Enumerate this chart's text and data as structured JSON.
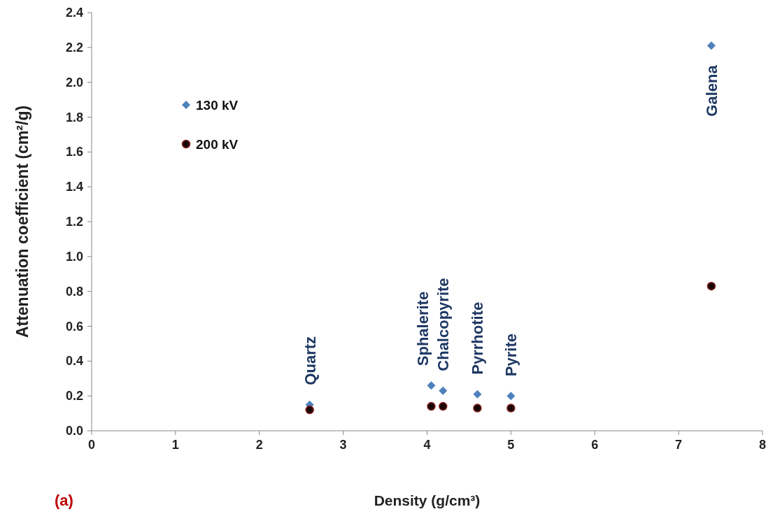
{
  "chart_data": {
    "type": "scatter",
    "xlabel": "Density (g/cm³)",
    "ylabel": "Attenuation coefficient  (cm²/g)",
    "xlim": [
      0,
      8
    ],
    "xticks": [
      0,
      1,
      2,
      3,
      4,
      5,
      6,
      7,
      8
    ],
    "ylim": [
      0,
      2.4
    ],
    "yticks": [
      {
        "value": 0,
        "label": "0.0"
      },
      {
        "value": 0.2,
        "label": "0.2"
      },
      {
        "value": 0.4,
        "label": "0.4"
      },
      {
        "value": 0.6,
        "label": "0.6"
      },
      {
        "value": 0.8,
        "label": "0.8"
      },
      {
        "value": 1,
        "label": "1.0"
      },
      {
        "value": 1.2,
        "label": "1.2"
      },
      {
        "value": 1.4,
        "label": "1.4"
      },
      {
        "value": 1.6,
        "label": "1.6"
      },
      {
        "value": 1.8,
        "label": "1.8"
      },
      {
        "value": 2,
        "label": "2.0"
      },
      {
        "value": 2.2,
        "label": "2.2"
      },
      {
        "value": 2.4,
        "label": "2.4"
      }
    ],
    "x": [
      2.6,
      4.05,
      4.19,
      4.6,
      5.0,
      7.39
    ],
    "series": [
      {
        "name": "130 kV",
        "color": "#4f81bd",
        "marker": "diamond",
        "values": [
          0.15,
          0.26,
          0.23,
          0.21,
          0.2,
          2.21
        ]
      },
      {
        "name": "200 kV",
        "color": "#1a0505",
        "marker": "circle",
        "values": [
          0.12,
          0.14,
          0.14,
          0.13,
          0.13,
          0.83
        ]
      }
    ],
    "legend": "top left",
    "grid": false,
    "annotations": [
      {
        "text": "Quartz",
        "x": 2.6,
        "y": 0.15
      },
      {
        "text": "Sphalerite",
        "x": 4.05,
        "y": 0.26
      },
      {
        "text": "Chalcopyrite",
        "x": 4.19,
        "y": 0.23
      },
      {
        "text": "Pyrrhotite",
        "x": 4.6,
        "y": 0.21
      },
      {
        "text": "Pyrite",
        "x": 5.0,
        "y": 0.2
      },
      {
        "text": "Galena",
        "x": 7.39,
        "y": 2.21
      },
      "(a)"
    ]
  }
}
